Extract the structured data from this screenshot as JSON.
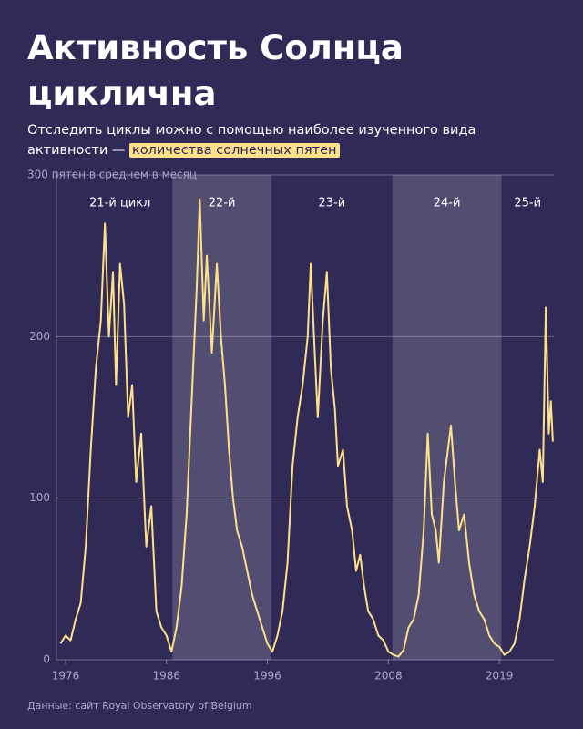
{
  "chart_data": {
    "type": "line",
    "title": "Активность Солнца циклична",
    "subtitle": "Отследить циклы можно с помощью наиболее изученного вида активности —",
    "subtitle_highlight": "количества солнечных пятен",
    "source": "Данные: сайт Royal Observatory of Belgium",
    "xlim": [
      1975.1,
      2024.4
    ],
    "ylim": [
      0,
      300
    ],
    "xticks": [
      1976,
      1986,
      1996,
      2008,
      2019
    ],
    "yticks": [
      0,
      100,
      200,
      {
        "value": 300,
        "label": "300 пятен в среднем в месяц"
      }
    ],
    "grid": true,
    "cycles": [
      {
        "label": "21-й цикл",
        "start": 1976.2,
        "end": 1986.6,
        "shaded": false
      },
      {
        "label": "22-й",
        "start": 1986.6,
        "end": 1996.4,
        "shaded": true
      },
      {
        "label": "23-й",
        "start": 1996.4,
        "end": 2008.4,
        "shaded": false
      },
      {
        "label": "24-й",
        "start": 2008.4,
        "end": 2019.2,
        "shaded": true
      },
      {
        "label": "25-й",
        "start": 2019.2,
        "end": 2024.4,
        "shaded": false
      }
    ],
    "x": [
      1975.5,
      1976.0,
      1976.5,
      1977.0,
      1977.5,
      1978.0,
      1978.5,
      1979.0,
      1979.5,
      1979.9,
      1980.3,
      1980.7,
      1981.0,
      1981.4,
      1981.8,
      1982.2,
      1982.6,
      1983.0,
      1983.5,
      1984.0,
      1984.5,
      1985.0,
      1985.5,
      1986.0,
      1986.5,
      1987.0,
      1987.5,
      1988.0,
      1988.5,
      1989.0,
      1989.3,
      1989.7,
      1990.0,
      1990.5,
      1991.0,
      1991.4,
      1991.8,
      1992.2,
      1992.6,
      1993.0,
      1993.5,
      1994.0,
      1994.5,
      1995.0,
      1995.5,
      1996.0,
      1996.5,
      1997.0,
      1997.5,
      1998.0,
      1998.5,
      1999.0,
      1999.5,
      2000.0,
      2000.3,
      2000.7,
      2001.0,
      2001.5,
      2001.9,
      2002.3,
      2002.7,
      2003.0,
      2003.5,
      2003.9,
      2004.4,
      2004.8,
      2005.2,
      2005.6,
      2006.0,
      2006.5,
      2007.0,
      2007.5,
      2008.0,
      2008.5,
      2009.0,
      2009.5,
      2010.0,
      2010.5,
      2011.0,
      2011.5,
      2011.9,
      2012.3,
      2012.7,
      2013.0,
      2013.5,
      2013.9,
      2014.2,
      2014.6,
      2015.0,
      2015.5,
      2016.0,
      2016.5,
      2017.0,
      2017.5,
      2018.0,
      2018.5,
      2019.0,
      2019.5,
      2020.0,
      2020.5,
      2021.0,
      2021.5,
      2022.0,
      2022.5,
      2023.0,
      2023.3,
      2023.6,
      2023.9,
      2024.1,
      2024.3
    ],
    "series": [
      {
        "name": "Солнечные пятна",
        "color": "#ffe08a",
        "values": [
          10,
          15,
          12,
          25,
          35,
          70,
          130,
          180,
          210,
          270,
          200,
          240,
          170,
          245,
          220,
          150,
          170,
          110,
          140,
          70,
          95,
          30,
          20,
          15,
          5,
          20,
          45,
          90,
          160,
          230,
          285,
          210,
          250,
          190,
          245,
          200,
          170,
          130,
          100,
          80,
          70,
          55,
          40,
          30,
          20,
          10,
          5,
          15,
          30,
          60,
          120,
          150,
          170,
          200,
          245,
          190,
          150,
          210,
          240,
          180,
          155,
          120,
          130,
          95,
          80,
          55,
          65,
          45,
          30,
          25,
          15,
          12,
          5,
          3,
          2,
          6,
          20,
          25,
          40,
          80,
          140,
          90,
          80,
          60,
          110,
          130,
          145,
          110,
          80,
          90,
          60,
          40,
          30,
          25,
          15,
          10,
          8,
          3,
          5,
          10,
          25,
          50,
          70,
          95,
          130,
          110,
          218,
          140,
          160,
          135
        ]
      }
    ]
  }
}
